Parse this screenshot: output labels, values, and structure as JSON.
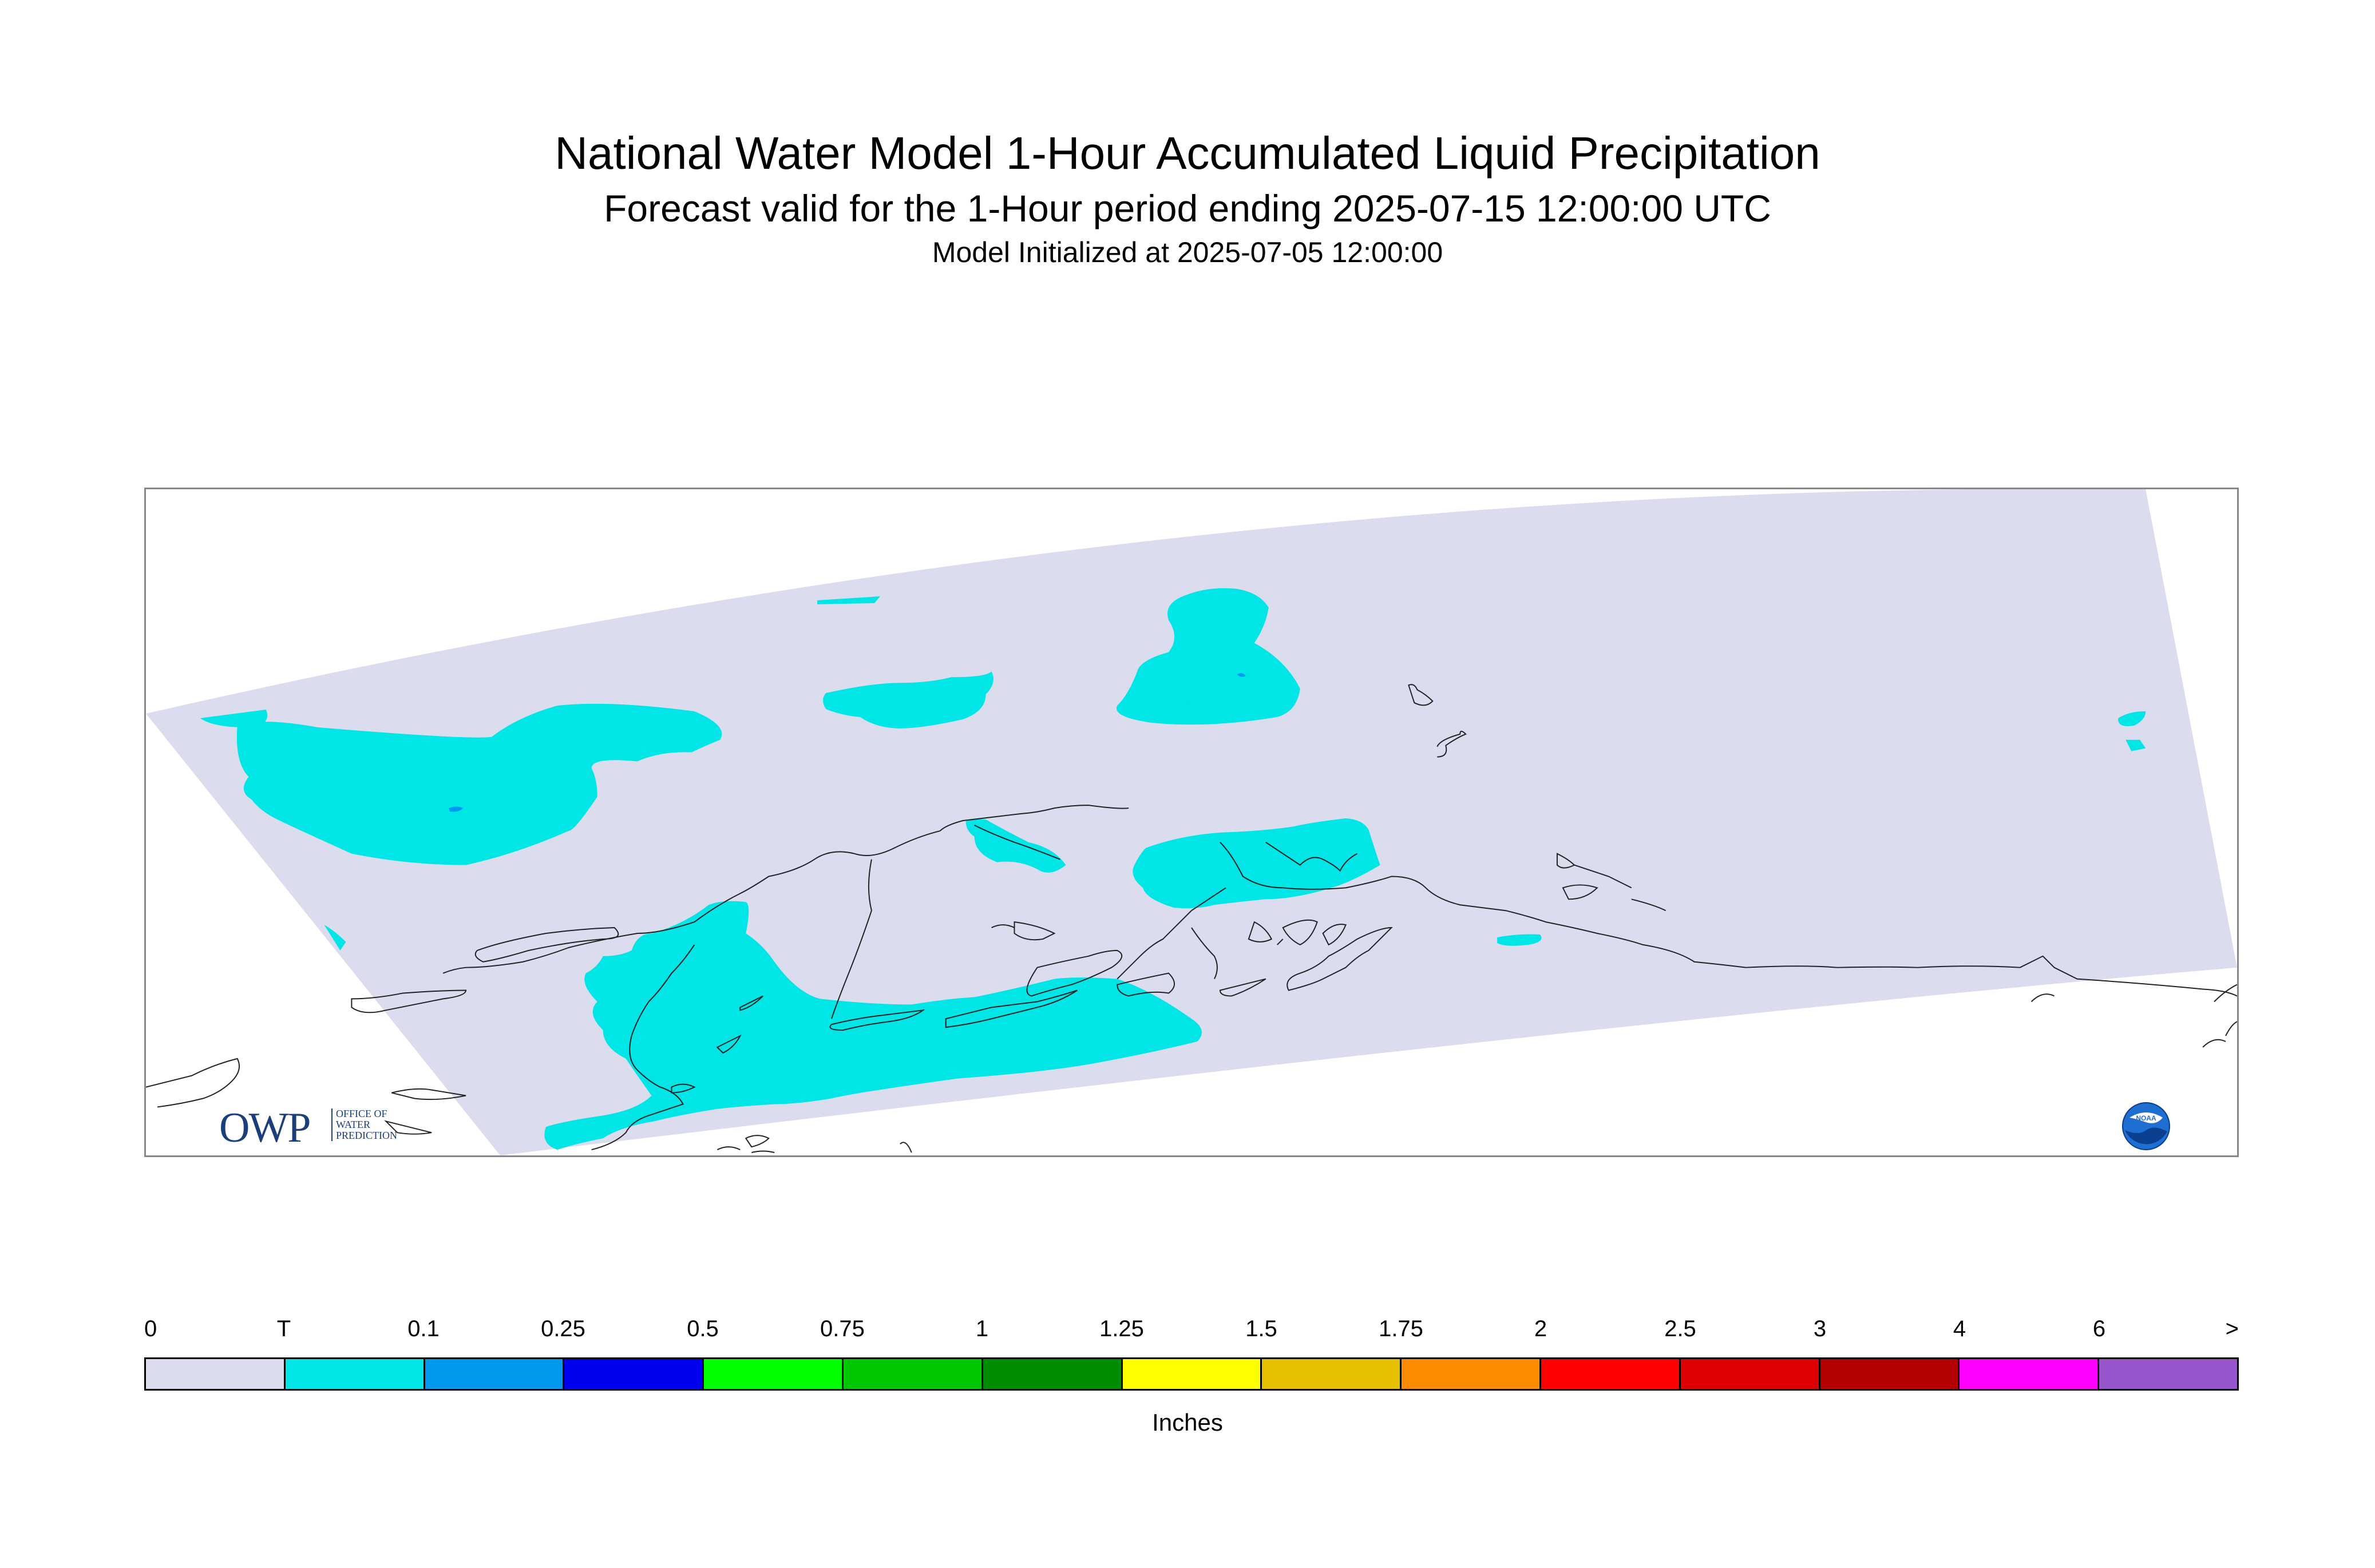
{
  "title": "National Water Model 1-Hour Accumulated Liquid Precipitation",
  "subtitle": "Forecast valid for the 1-Hour period ending 2025-07-15 12:00:00 UTC",
  "initialized": "Model Initialized at 2025-07-05 12:00:00",
  "map": {
    "region": "Alaska",
    "domain_fill_color": "#dcdcef",
    "trace_color": "#00e5e5",
    "light_precip_color": "#0099f0"
  },
  "logos": {
    "owp_text": "OWP",
    "owp_sub": [
      "OFFICE OF",
      "WATER",
      "PREDICTION"
    ],
    "noaa_text": "NOAA"
  },
  "legend": {
    "unit": "Inches",
    "labels": [
      "0",
      "T",
      "0.1",
      "0.25",
      "0.5",
      "0.75",
      "1",
      "1.25",
      "1.5",
      "1.75",
      "2",
      "2.5",
      "3",
      "4",
      "6",
      ">"
    ],
    "colors": [
      "#dcdcef",
      "#00e5e5",
      "#0099f0",
      "#0000f0",
      "#00ff00",
      "#00c800",
      "#008c00",
      "#ffff00",
      "#e5c000",
      "#ff8c00",
      "#ff0000",
      "#dc0000",
      "#b40000",
      "#ff00ff",
      "#9955cc"
    ]
  }
}
